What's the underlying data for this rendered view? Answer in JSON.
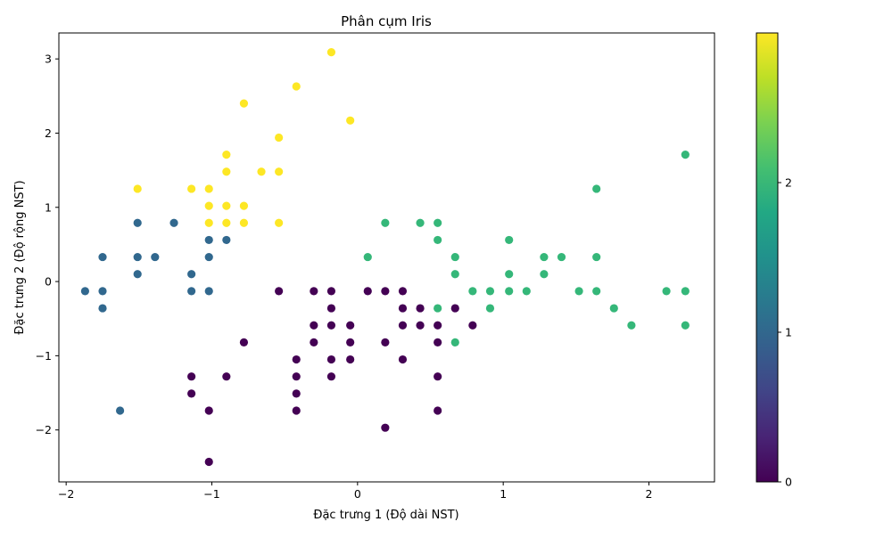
{
  "chart_data": {
    "type": "scatter",
    "title": "Phân cụm Iris",
    "xlabel": "Đặc trưng 1 (Độ dài NST)",
    "ylabel": "Đặc trưng 2 (Độ rộng NST)",
    "xlim": [
      -2.05,
      2.45
    ],
    "ylim": [
      -2.7,
      3.35
    ],
    "xticks": [
      -2,
      -1,
      0,
      1,
      2
    ],
    "yticks": [
      -2,
      -1,
      0,
      1,
      2,
      3
    ],
    "xtick_labels": [
      "−2",
      "−1",
      "0",
      "1",
      "2"
    ],
    "ytick_labels": [
      "−2",
      "−1",
      "0",
      "1",
      "2",
      "3"
    ],
    "grid": false,
    "colorbar": {
      "colormap": "viridis",
      "range": [
        0,
        3
      ],
      "ticks": [
        0,
        1,
        2
      ],
      "tick_labels": [
        "0",
        "1",
        "2"
      ]
    },
    "cluster_colors": [
      "#440154",
      "#31688e",
      "#35b779",
      "#fde725"
    ],
    "points": [
      {
        "x": -0.54,
        "y": 0.79,
        "c": 3
      },
      {
        "x": -1.51,
        "y": 1.25,
        "c": 3
      },
      {
        "x": -1.14,
        "y": 1.25,
        "c": 3
      },
      {
        "x": -1.02,
        "y": 1.25,
        "c": 3
      },
      {
        "x": -1.02,
        "y": 1.02,
        "c": 3
      },
      {
        "x": -1.02,
        "y": 0.79,
        "c": 3
      },
      {
        "x": -0.9,
        "y": 1.71,
        "c": 3
      },
      {
        "x": -0.9,
        "y": 1.48,
        "c": 3
      },
      {
        "x": -0.9,
        "y": 1.02,
        "c": 3
      },
      {
        "x": -0.9,
        "y": 0.79,
        "c": 3
      },
      {
        "x": -0.78,
        "y": 2.4,
        "c": 3
      },
      {
        "x": -0.78,
        "y": 1.02,
        "c": 3
      },
      {
        "x": -0.78,
        "y": 0.79,
        "c": 3
      },
      {
        "x": -0.66,
        "y": 1.48,
        "c": 3
      },
      {
        "x": -0.54,
        "y": 1.94,
        "c": 3
      },
      {
        "x": -0.54,
        "y": 1.48,
        "c": 3
      },
      {
        "x": -0.42,
        "y": 2.63,
        "c": 3
      },
      {
        "x": -0.18,
        "y": 3.09,
        "c": 3
      },
      {
        "x": -0.05,
        "y": 2.17,
        "c": 3
      },
      {
        "x": -1.87,
        "y": -0.13,
        "c": 1
      },
      {
        "x": -1.75,
        "y": 0.33,
        "c": 1
      },
      {
        "x": -1.75,
        "y": -0.13,
        "c": 1
      },
      {
        "x": -1.75,
        "y": -0.36,
        "c": 1
      },
      {
        "x": -1.63,
        "y": -1.74,
        "c": 1
      },
      {
        "x": -1.51,
        "y": 0.79,
        "c": 1
      },
      {
        "x": -1.51,
        "y": 0.33,
        "c": 1
      },
      {
        "x": -1.51,
        "y": 0.1,
        "c": 1
      },
      {
        "x": -1.39,
        "y": 0.33,
        "c": 1
      },
      {
        "x": -1.26,
        "y": 0.79,
        "c": 1
      },
      {
        "x": -1.14,
        "y": 0.1,
        "c": 1
      },
      {
        "x": -1.14,
        "y": -0.13,
        "c": 1
      },
      {
        "x": -1.02,
        "y": 0.56,
        "c": 1
      },
      {
        "x": -1.02,
        "y": 0.33,
        "c": 1
      },
      {
        "x": -1.02,
        "y": -0.13,
        "c": 1
      },
      {
        "x": -0.9,
        "y": 0.56,
        "c": 1
      },
      {
        "x": -1.14,
        "y": -1.28,
        "c": 0
      },
      {
        "x": -1.14,
        "y": -1.51,
        "c": 0
      },
      {
        "x": -1.02,
        "y": -1.74,
        "c": 0
      },
      {
        "x": -1.02,
        "y": -2.43,
        "c": 0
      },
      {
        "x": -0.9,
        "y": -1.28,
        "c": 0
      },
      {
        "x": -0.78,
        "y": -0.82,
        "c": 0
      },
      {
        "x": -0.54,
        "y": -0.13,
        "c": 0
      },
      {
        "x": -0.42,
        "y": -1.05,
        "c": 0
      },
      {
        "x": -0.42,
        "y": -1.28,
        "c": 0
      },
      {
        "x": -0.42,
        "y": -1.51,
        "c": 0
      },
      {
        "x": -0.42,
        "y": -1.74,
        "c": 0
      },
      {
        "x": -0.3,
        "y": -0.13,
        "c": 0
      },
      {
        "x": -0.3,
        "y": -0.59,
        "c": 0
      },
      {
        "x": -0.3,
        "y": -0.82,
        "c": 0
      },
      {
        "x": -0.18,
        "y": -0.13,
        "c": 0
      },
      {
        "x": -0.18,
        "y": -0.36,
        "c": 0
      },
      {
        "x": -0.18,
        "y": -0.59,
        "c": 0
      },
      {
        "x": -0.18,
        "y": -1.05,
        "c": 0
      },
      {
        "x": -0.18,
        "y": -1.28,
        "c": 0
      },
      {
        "x": -0.05,
        "y": -0.59,
        "c": 0
      },
      {
        "x": -0.05,
        "y": -0.82,
        "c": 0
      },
      {
        "x": -0.05,
        "y": -1.05,
        "c": 0
      },
      {
        "x": 0.07,
        "y": -0.13,
        "c": 0
      },
      {
        "x": 0.19,
        "y": -0.13,
        "c": 0
      },
      {
        "x": 0.19,
        "y": -0.82,
        "c": 0
      },
      {
        "x": 0.19,
        "y": -1.97,
        "c": 0
      },
      {
        "x": 0.31,
        "y": -0.13,
        "c": 0
      },
      {
        "x": 0.31,
        "y": -0.36,
        "c": 0
      },
      {
        "x": 0.31,
        "y": -0.59,
        "c": 0
      },
      {
        "x": 0.31,
        "y": -1.05,
        "c": 0
      },
      {
        "x": 0.43,
        "y": -0.36,
        "c": 0
      },
      {
        "x": 0.43,
        "y": -0.59,
        "c": 0
      },
      {
        "x": 0.55,
        "y": -0.59,
        "c": 0
      },
      {
        "x": 0.55,
        "y": -0.82,
        "c": 0
      },
      {
        "x": 0.55,
        "y": -1.28,
        "c": 0
      },
      {
        "x": 0.55,
        "y": -1.74,
        "c": 0
      },
      {
        "x": 0.67,
        "y": -0.36,
        "c": 0
      },
      {
        "x": 0.79,
        "y": -0.59,
        "c": 0
      },
      {
        "x": 0.07,
        "y": 0.33,
        "c": 2
      },
      {
        "x": 0.19,
        "y": 0.79,
        "c": 2
      },
      {
        "x": 0.43,
        "y": 0.79,
        "c": 2
      },
      {
        "x": 0.55,
        "y": 0.79,
        "c": 2
      },
      {
        "x": 0.55,
        "y": 0.56,
        "c": 2
      },
      {
        "x": 0.55,
        "y": -0.36,
        "c": 2
      },
      {
        "x": 0.67,
        "y": 0.33,
        "c": 2
      },
      {
        "x": 0.67,
        "y": 0.1,
        "c": 2
      },
      {
        "x": 0.67,
        "y": -0.82,
        "c": 2
      },
      {
        "x": 0.79,
        "y": -0.13,
        "c": 2
      },
      {
        "x": 0.91,
        "y": -0.13,
        "c": 2
      },
      {
        "x": 0.91,
        "y": -0.36,
        "c": 2
      },
      {
        "x": 1.04,
        "y": 0.56,
        "c": 2
      },
      {
        "x": 1.04,
        "y": 0.1,
        "c": 2
      },
      {
        "x": 1.04,
        "y": -0.13,
        "c": 2
      },
      {
        "x": 1.16,
        "y": -0.13,
        "c": 2
      },
      {
        "x": 1.28,
        "y": 0.33,
        "c": 2
      },
      {
        "x": 1.28,
        "y": 0.1,
        "c": 2
      },
      {
        "x": 1.4,
        "y": 0.33,
        "c": 2
      },
      {
        "x": 1.52,
        "y": -0.13,
        "c": 2
      },
      {
        "x": 1.64,
        "y": 1.25,
        "c": 2
      },
      {
        "x": 1.64,
        "y": 0.33,
        "c": 2
      },
      {
        "x": 1.64,
        "y": -0.13,
        "c": 2
      },
      {
        "x": 1.76,
        "y": -0.36,
        "c": 2
      },
      {
        "x": 1.88,
        "y": -0.59,
        "c": 2
      },
      {
        "x": 2.12,
        "y": -0.13,
        "c": 2
      },
      {
        "x": 2.25,
        "y": 1.71,
        "c": 2
      },
      {
        "x": 2.25,
        "y": -0.13,
        "c": 2
      },
      {
        "x": 2.25,
        "y": -0.59,
        "c": 2
      }
    ]
  }
}
